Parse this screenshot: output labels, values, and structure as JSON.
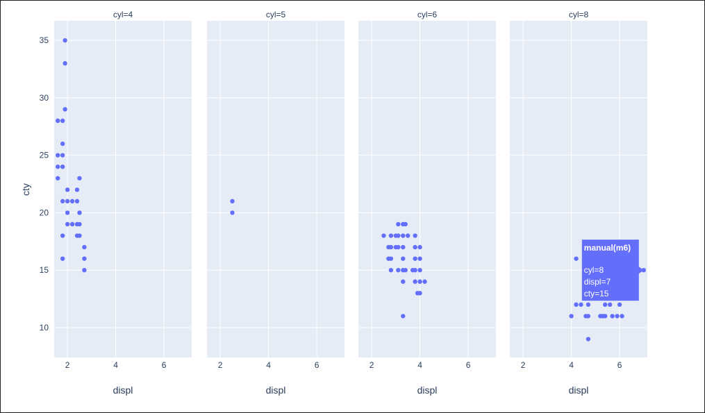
{
  "chart_data": {
    "type": "scatter",
    "ylabel": "cty",
    "xlabel": "displ",
    "xlim": [
      1.45,
      7.15
    ],
    "ylim": [
      7.4,
      36.7
    ],
    "xticks": [
      2,
      4,
      6
    ],
    "yticks": [
      10,
      15,
      20,
      25,
      30,
      35
    ],
    "marker_color": "#636efa",
    "facets": [
      {
        "title": "cyl=4",
        "points": [
          [
            1.9,
            35
          ],
          [
            1.9,
            33
          ],
          [
            1.9,
            29
          ],
          [
            1.6,
            28
          ],
          [
            1.8,
            28
          ],
          [
            1.8,
            26
          ],
          [
            1.8,
            25
          ],
          [
            1.6,
            25
          ],
          [
            1.6,
            24
          ],
          [
            1.8,
            24
          ],
          [
            1.6,
            23
          ],
          [
            2.5,
            23
          ],
          [
            2.0,
            22
          ],
          [
            2.4,
            22
          ],
          [
            1.8,
            21
          ],
          [
            2.0,
            21
          ],
          [
            2.2,
            21
          ],
          [
            2.4,
            21
          ],
          [
            2.0,
            20
          ],
          [
            2.5,
            20
          ],
          [
            2.0,
            19
          ],
          [
            2.2,
            19
          ],
          [
            2.4,
            19
          ],
          [
            2.5,
            19
          ],
          [
            1.8,
            18
          ],
          [
            2.4,
            18
          ],
          [
            2.5,
            18
          ],
          [
            2.7,
            17
          ],
          [
            1.8,
            16
          ],
          [
            2.7,
            16
          ],
          [
            2.7,
            15
          ]
        ]
      },
      {
        "title": "cyl=5",
        "points": [
          [
            2.5,
            21
          ],
          [
            2.5,
            20
          ]
        ]
      },
      {
        "title": "cyl=6",
        "points": [
          [
            3.1,
            19
          ],
          [
            3.3,
            19
          ],
          [
            3.4,
            19
          ],
          [
            2.5,
            18
          ],
          [
            2.8,
            18
          ],
          [
            3.0,
            18
          ],
          [
            3.1,
            18
          ],
          [
            3.3,
            18
          ],
          [
            3.5,
            18
          ],
          [
            3.8,
            18
          ],
          [
            2.7,
            17
          ],
          [
            2.8,
            17
          ],
          [
            3.0,
            17
          ],
          [
            3.1,
            17
          ],
          [
            3.3,
            17
          ],
          [
            3.8,
            17
          ],
          [
            4.0,
            17
          ],
          [
            2.7,
            16
          ],
          [
            2.8,
            16
          ],
          [
            3.3,
            16
          ],
          [
            3.8,
            16
          ],
          [
            4.0,
            16
          ],
          [
            2.8,
            15
          ],
          [
            3.1,
            15
          ],
          [
            3.3,
            15
          ],
          [
            3.4,
            15
          ],
          [
            3.7,
            15
          ],
          [
            3.8,
            15
          ],
          [
            4.0,
            15
          ],
          [
            3.3,
            14
          ],
          [
            3.8,
            14
          ],
          [
            4.0,
            14
          ],
          [
            4.2,
            14
          ],
          [
            3.9,
            13
          ],
          [
            4.0,
            13
          ],
          [
            3.3,
            11
          ]
        ]
      },
      {
        "title": "cyl=8",
        "points": [
          [
            4.2,
            16
          ],
          [
            7.0,
            15
          ],
          [
            4.2,
            12
          ],
          [
            4.4,
            12
          ],
          [
            4.7,
            12
          ],
          [
            5.4,
            12
          ],
          [
            5.6,
            12
          ],
          [
            6.0,
            12
          ],
          [
            4.0,
            11
          ],
          [
            4.6,
            11
          ],
          [
            4.7,
            11
          ],
          [
            5.2,
            11
          ],
          [
            5.3,
            11
          ],
          [
            5.4,
            11
          ],
          [
            5.7,
            11
          ],
          [
            5.9,
            11
          ],
          [
            6.1,
            11
          ],
          [
            4.7,
            9
          ]
        ]
      }
    ],
    "hover": {
      "facet": 3,
      "point": [
        7.0,
        15
      ],
      "title": "manual(m6)",
      "lines": [
        "cyl=8",
        "displ=7",
        "cty=15"
      ]
    }
  }
}
